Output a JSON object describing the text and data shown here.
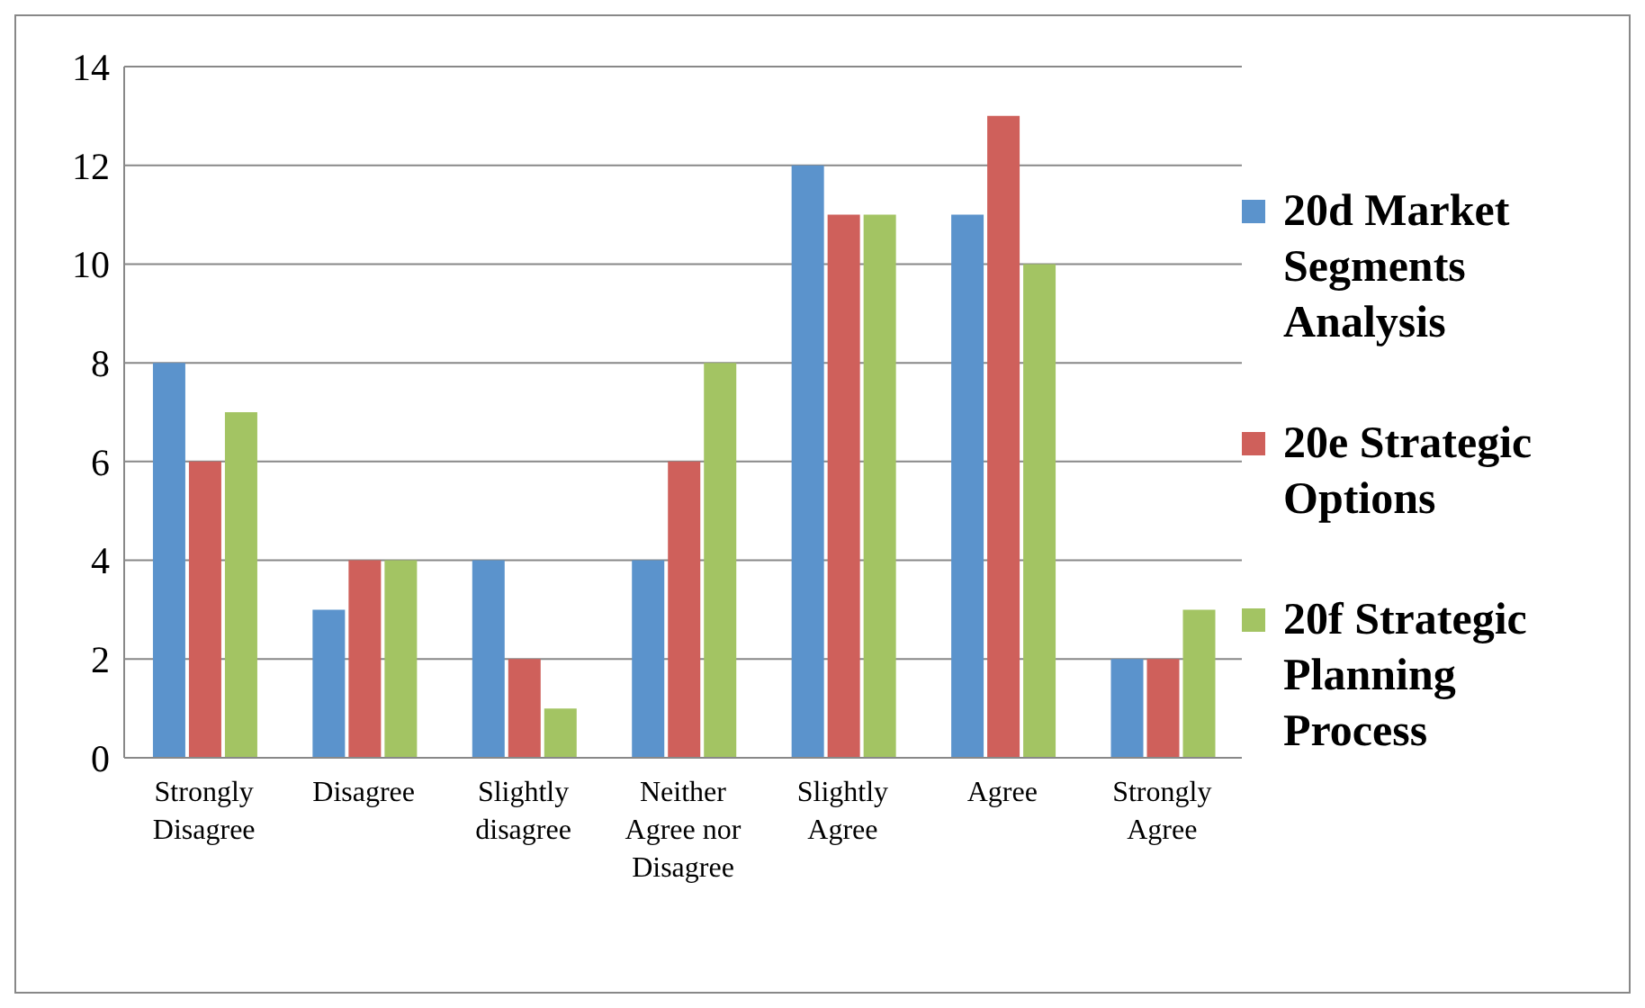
{
  "chart_data": {
    "type": "bar",
    "categories": [
      "Strongly Disagree",
      "Disagree",
      "Slightly disagree",
      "Neither Agree nor Disagree",
      "Slightly Agree",
      "Agree",
      "Strongly Agree"
    ],
    "series": [
      {
        "name": "20d Market Segments Analysis",
        "color": "#5b93cc",
        "values": [
          8,
          3,
          4,
          4,
          12,
          11,
          2
        ]
      },
      {
        "name": "20e Strategic Options",
        "color": "#cf605b",
        "values": [
          6,
          4,
          2,
          6,
          11,
          13,
          2
        ]
      },
      {
        "name": "20f Strategic Planning Process",
        "color": "#a3c463",
        "values": [
          7,
          4,
          1,
          8,
          11,
          10,
          3
        ]
      }
    ],
    "ylim": [
      0,
      14
    ],
    "yticks": [
      0,
      2,
      4,
      6,
      8,
      10,
      12,
      14
    ],
    "grid": "y",
    "legend": "right"
  }
}
